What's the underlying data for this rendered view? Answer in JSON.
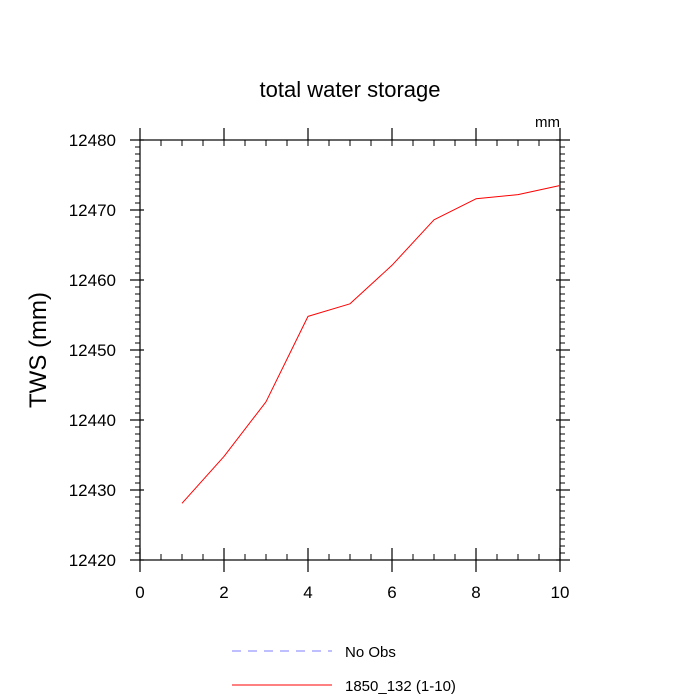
{
  "chart_data": {
    "type": "line",
    "title": "total water storage",
    "units_label": "mm",
    "ylabel": "TWS  (mm)",
    "xlabel": "",
    "xlim": [
      0,
      10
    ],
    "ylim": [
      12420,
      12480
    ],
    "x_ticks": [
      0,
      2,
      4,
      6,
      8,
      10
    ],
    "y_ticks": [
      12420,
      12430,
      12440,
      12450,
      12460,
      12470,
      12480
    ],
    "series": [
      {
        "name": "No Obs",
        "color": "#7f7fff",
        "dash": "dashed",
        "x": [],
        "values": []
      },
      {
        "name": "1850_132 (1-10)",
        "color": "#ff0000",
        "dash": "solid",
        "x": [
          1,
          2,
          3,
          4,
          5,
          6,
          7,
          8,
          9,
          10
        ],
        "values": [
          12428.1,
          12434.8,
          12442.6,
          12454.8,
          12456.6,
          12462.1,
          12468.6,
          12471.6,
          12472.2,
          12473.5
        ]
      }
    ],
    "legend_placement": "bottom"
  }
}
